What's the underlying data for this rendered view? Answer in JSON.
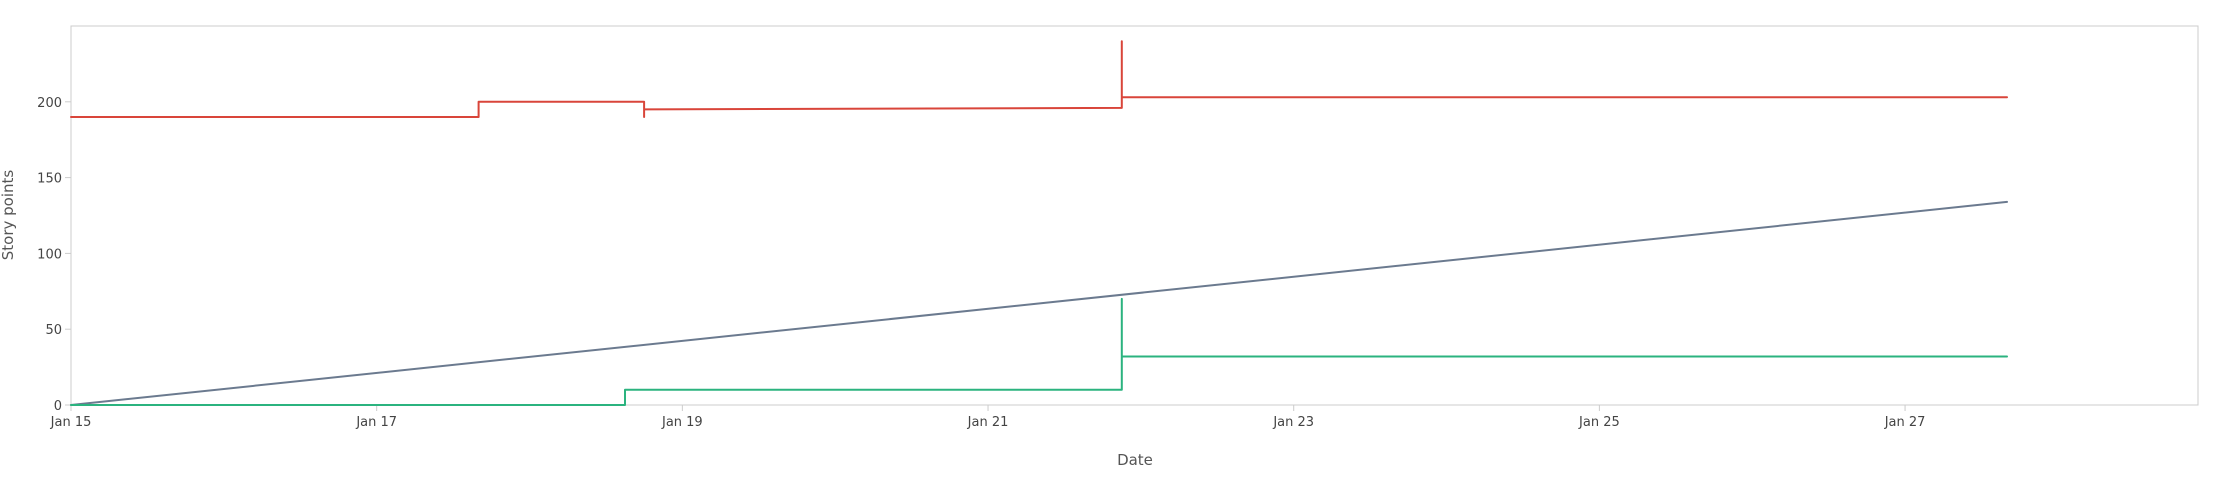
{
  "chart_data": {
    "type": "line",
    "title": "",
    "xlabel": "Date",
    "ylabel": "Story points",
    "x_tick_labels": [
      "Jan 15",
      "Jan 17",
      "Jan 19",
      "Jan 21",
      "Jan 23",
      "Jan 25",
      "Jan 27"
    ],
    "x_ticks": [
      "2024-01-15",
      "2024-01-17",
      "2024-01-19",
      "2024-01-21",
      "2024-01-23",
      "2024-01-25",
      "2024-01-27"
    ],
    "y_ticks": [
      0,
      50,
      100,
      150,
      200
    ],
    "xlim": [
      "2024-01-15",
      "2024-01-28T22:00"
    ],
    "ylim": [
      0,
      250
    ],
    "grid": false,
    "legend": "none",
    "series": [
      {
        "color": "#d9453a",
        "points": [
          [
            "2024-01-15T00:00",
            190
          ],
          [
            "2024-01-17T16:00",
            190
          ],
          [
            "2024-01-17T16:00",
            200
          ],
          [
            "2024-01-18T18:00",
            200
          ],
          [
            "2024-01-18T18:00",
            190
          ],
          [
            "2024-01-18T18:00",
            195
          ],
          [
            "2024-01-21T21:00",
            196
          ],
          [
            "2024-01-21T21:00",
            240
          ],
          [
            "2024-01-21T21:00",
            203
          ],
          [
            "2024-01-27T16:00",
            203
          ]
        ]
      },
      {
        "color": "#6b7a8f",
        "points": [
          [
            "2024-01-15T00:00",
            0
          ],
          [
            "2024-01-27T16:00",
            134
          ]
        ]
      },
      {
        "color": "#2bb37f",
        "points": [
          [
            "2024-01-15T00:00",
            0
          ],
          [
            "2024-01-18T15:00",
            0
          ],
          [
            "2024-01-18T15:00",
            10
          ],
          [
            "2024-01-21T21:00",
            10
          ],
          [
            "2024-01-21T21:00",
            70
          ],
          [
            "2024-01-21T21:00",
            32
          ],
          [
            "2024-01-27T16:00",
            32
          ]
        ]
      }
    ]
  }
}
